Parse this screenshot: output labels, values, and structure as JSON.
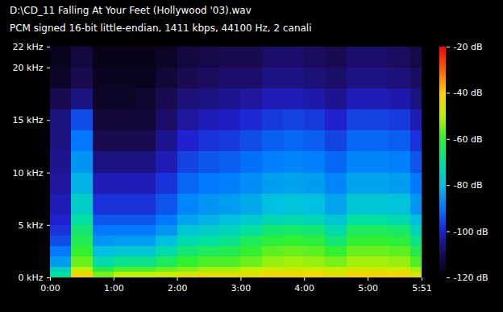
{
  "chart_data": {
    "type": "heatmap",
    "title": "D:\\CD_11 Falling At Your Feet (Hollywood '03).wav",
    "subtitle": "PCM signed 16-bit little-endian, 1411 kbps, 44100 Hz, 2 canali",
    "xlim": [
      0,
      351
    ],
    "xticks": [
      {
        "value": 0,
        "label": "0:00"
      },
      {
        "value": 60,
        "label": "1:00"
      },
      {
        "value": 120,
        "label": "2:00"
      },
      {
        "value": 180,
        "label": "3:00"
      },
      {
        "value": 240,
        "label": "4:00"
      },
      {
        "value": 300,
        "label": "5:00"
      },
      {
        "value": 351,
        "label": "5:51"
      }
    ],
    "ylim": [
      0,
      22
    ],
    "yticks": [
      {
        "value": 0,
        "label": "0 kHz"
      },
      {
        "value": 5,
        "label": "5 kHz"
      },
      {
        "value": 10,
        "label": "10 kHz"
      },
      {
        "value": 15,
        "label": "15 kHz"
      },
      {
        "value": 20,
        "label": "20 kHz"
      },
      {
        "value": 22,
        "label": "22 kHz"
      }
    ],
    "x_edges": [
      0,
      20,
      40,
      60,
      80,
      100,
      120,
      140,
      160,
      180,
      200,
      220,
      240,
      260,
      280,
      300,
      320,
      340,
      351
    ],
    "y_edges": [
      0,
      0.5,
      1,
      2,
      3,
      4,
      5,
      6,
      8,
      10,
      12,
      14,
      16,
      18,
      20,
      22
    ],
    "values": [
      [
        -70,
        -75,
        -85,
        -90,
        -95,
        -98,
        -100,
        -102,
        -104,
        -105,
        -106,
        -106,
        -110,
        -115,
        -116
      ],
      [
        -42,
        -50,
        -56,
        -60,
        -63,
        -66,
        -70,
        -76,
        -82,
        -86,
        -90,
        -95,
        -106,
        -110,
        -112
      ],
      [
        -55,
        -62,
        -72,
        -80,
        -86,
        -90,
        -94,
        -98,
        -102,
        -106,
        -110,
        -113,
        -115,
        -116,
        -117
      ],
      [
        -50,
        -58,
        -68,
        -78,
        -85,
        -90,
        -94,
        -98,
        -102,
        -106,
        -110,
        -113,
        -115,
        -116,
        -117
      ],
      [
        -50,
        -58,
        -68,
        -78,
        -85,
        -90,
        -94,
        -98,
        -102,
        -106,
        -110,
        -113,
        -114,
        -116,
        -117
      ],
      [
        -48,
        -56,
        -64,
        -72,
        -80,
        -86,
        -90,
        -94,
        -98,
        -102,
        -105,
        -108,
        -110,
        -113,
        -115
      ],
      [
        -46,
        -54,
        -60,
        -66,
        -72,
        -78,
        -84,
        -88,
        -92,
        -96,
        -100,
        -104,
        -107,
        -110,
        -112
      ],
      [
        -45,
        -52,
        -58,
        -64,
        -70,
        -76,
        -82,
        -86,
        -90,
        -94,
        -98,
        -102,
        -106,
        -109,
        -111
      ],
      [
        -45,
        -52,
        -58,
        -63,
        -68,
        -74,
        -80,
        -85,
        -89,
        -93,
        -97,
        -101,
        -105,
        -108,
        -110
      ],
      [
        -44,
        -50,
        -56,
        -60,
        -64,
        -70,
        -77,
        -83,
        -87,
        -91,
        -95,
        -99,
        -104,
        -108,
        -110
      ],
      [
        -42,
        -48,
        -53,
        -57,
        -61,
        -66,
        -73,
        -80,
        -85,
        -89,
        -93,
        -97,
        -102,
        -106,
        -108
      ],
      [
        -42,
        -48,
        -52,
        -56,
        -60,
        -65,
        -72,
        -79,
        -84,
        -88,
        -92,
        -96,
        -102,
        -106,
        -108
      ],
      [
        -43,
        -48,
        -53,
        -57,
        -61,
        -66,
        -73,
        -80,
        -85,
        -89,
        -93,
        -97,
        -103,
        -107,
        -109
      ],
      [
        -44,
        -50,
        -55,
        -60,
        -66,
        -72,
        -78,
        -84,
        -88,
        -92,
        -96,
        -100,
        -105,
        -108,
        -110
      ],
      [
        -42,
        -47,
        -52,
        -56,
        -60,
        -64,
        -70,
        -78,
        -84,
        -88,
        -92,
        -96,
        -102,
        -106,
        -108
      ],
      [
        -42,
        -47,
        -52,
        -56,
        -60,
        -64,
        -70,
        -78,
        -84,
        -88,
        -92,
        -96,
        -102,
        -106,
        -108
      ],
      [
        -42,
        -48,
        -53,
        -57,
        -61,
        -65,
        -72,
        -79,
        -85,
        -89,
        -93,
        -97,
        -103,
        -107,
        -109
      ],
      [
        -46,
        -52,
        -58,
        -63,
        -68,
        -74,
        -80,
        -86,
        -90,
        -94,
        -98,
        -102,
        -106,
        -109,
        -111
      ]
    ],
    "colorbar": {
      "range": [
        -120,
        -20
      ],
      "ticks": [
        {
          "value": -20,
          "label": "-20 dB"
        },
        {
          "value": -40,
          "label": "-40 dB"
        },
        {
          "value": -60,
          "label": "-60 dB"
        },
        {
          "value": -80,
          "label": "-80 dB"
        },
        {
          "value": -100,
          "label": "-100 dB"
        },
        {
          "value": -120,
          "label": "-120 dB"
        }
      ],
      "stops": [
        -120,
        -110,
        -100,
        -90,
        -80,
        -70,
        -60,
        -50,
        -40,
        -30,
        -20
      ],
      "colors": [
        "#000000",
        "#1a0a50",
        "#2020d0",
        "#0078ff",
        "#00c0e0",
        "#00e0a0",
        "#30f030",
        "#c0f000",
        "#ffd000",
        "#ff6000",
        "#ff0000"
      ]
    }
  }
}
